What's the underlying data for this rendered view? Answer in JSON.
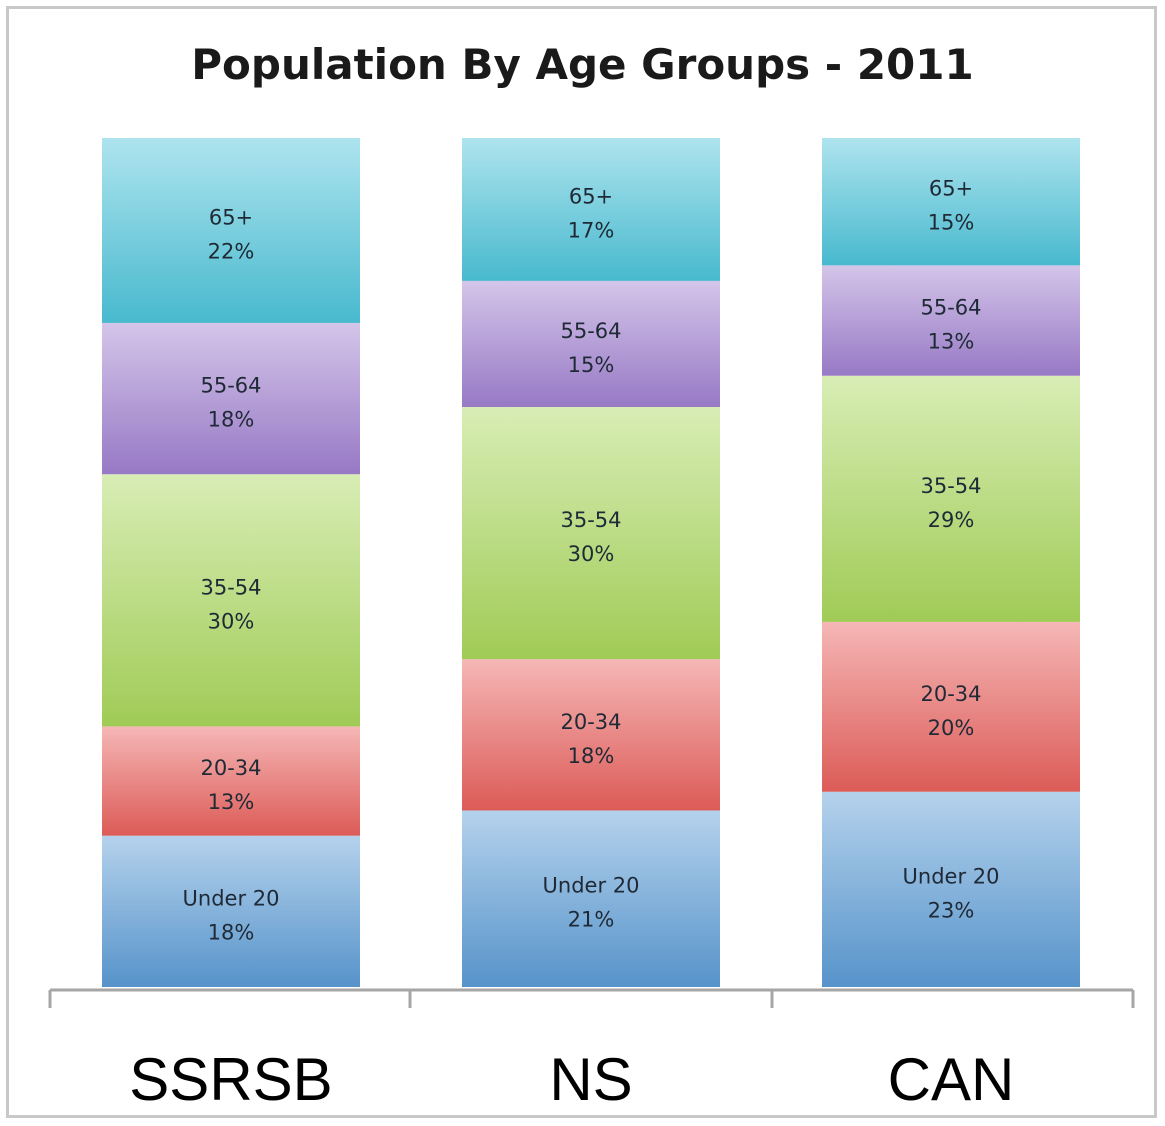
{
  "chart_data": {
    "type": "bar",
    "stacked": true,
    "percent_stacked": true,
    "title": "Population By Age Groups - 2011",
    "categories": [
      "SSRSB",
      "NS",
      "CAN"
    ],
    "series": [
      {
        "name": "Under 20",
        "values": [
          18,
          21,
          23
        ],
        "color": "#5b9bd5"
      },
      {
        "name": "20-34",
        "values": [
          13,
          18,
          20
        ],
        "color": "#e8605c"
      },
      {
        "name": "35-54",
        "values": [
          30,
          30,
          29
        ],
        "color": "#a8d65a"
      },
      {
        "name": "55-64",
        "values": [
          18,
          15,
          13
        ],
        "color": "#9f7fcf"
      },
      {
        "name": "65+",
        "values": [
          22,
          17,
          15
        ],
        "color": "#4cc3d9"
      }
    ],
    "value_suffix": "%",
    "grid": false,
    "legend": "none",
    "ylim": [
      0,
      100
    ]
  }
}
